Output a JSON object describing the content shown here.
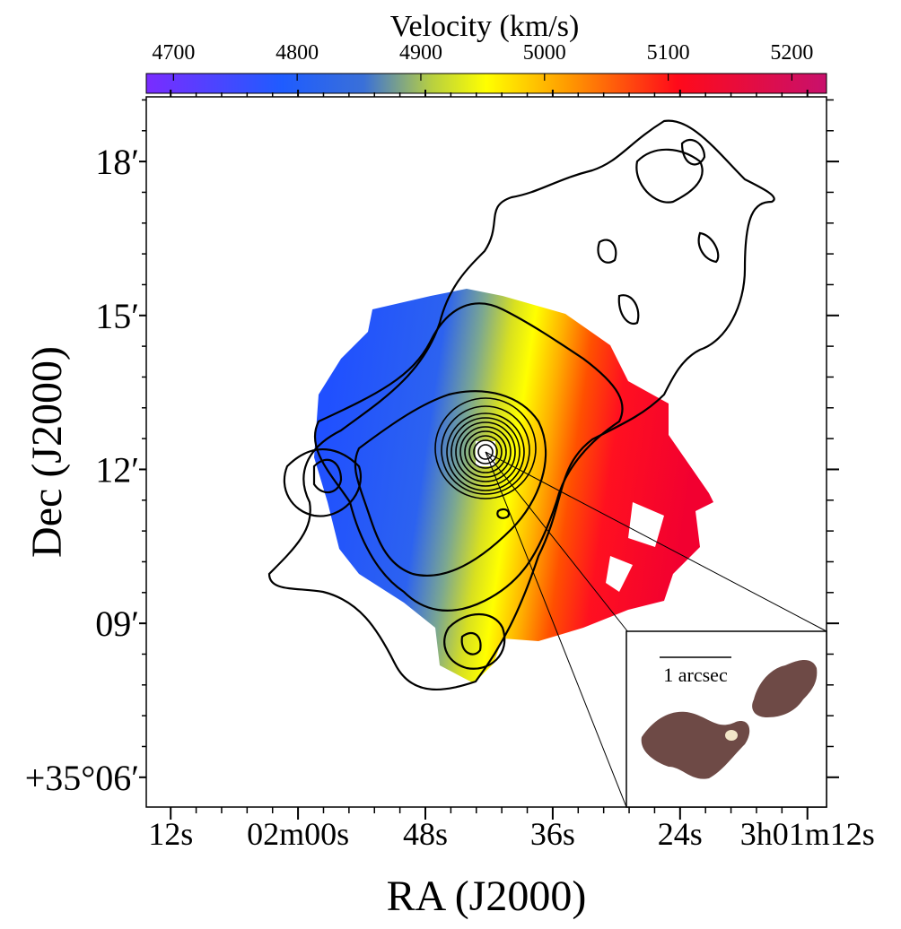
{
  "chart_data": {
    "type": "map",
    "xlabel": "RA (J2000)",
    "ylabel": "Dec (J2000)",
    "xlim": [
      74.3,
      10.2
    ],
    "xticks": [
      {
        "value": 72,
        "label": "12s"
      },
      {
        "value": 60,
        "label": "02m00s"
      },
      {
        "value": 48,
        "label": "48s"
      },
      {
        "value": 36,
        "label": "36s"
      },
      {
        "value": 24,
        "label": "24s"
      },
      {
        "value": 12,
        "label": "3h01m12s"
      }
    ],
    "ylim": [
      5.42,
      19.26
    ],
    "yticks": [
      {
        "value": 18,
        "label": "18′"
      },
      {
        "value": 15,
        "label": "15′"
      },
      {
        "value": 12,
        "label": "12′"
      },
      {
        "value": 9,
        "label": "09′"
      },
      {
        "value": 6,
        "label": "+35°06′"
      }
    ],
    "colorbar": {
      "label": "Velocity (km/s)",
      "lim": [
        4678,
        5228
      ],
      "ticks": [
        4700,
        4800,
        4900,
        5000,
        5100,
        5200
      ]
    },
    "inset": {
      "scale_label": "1 arcsec"
    }
  }
}
